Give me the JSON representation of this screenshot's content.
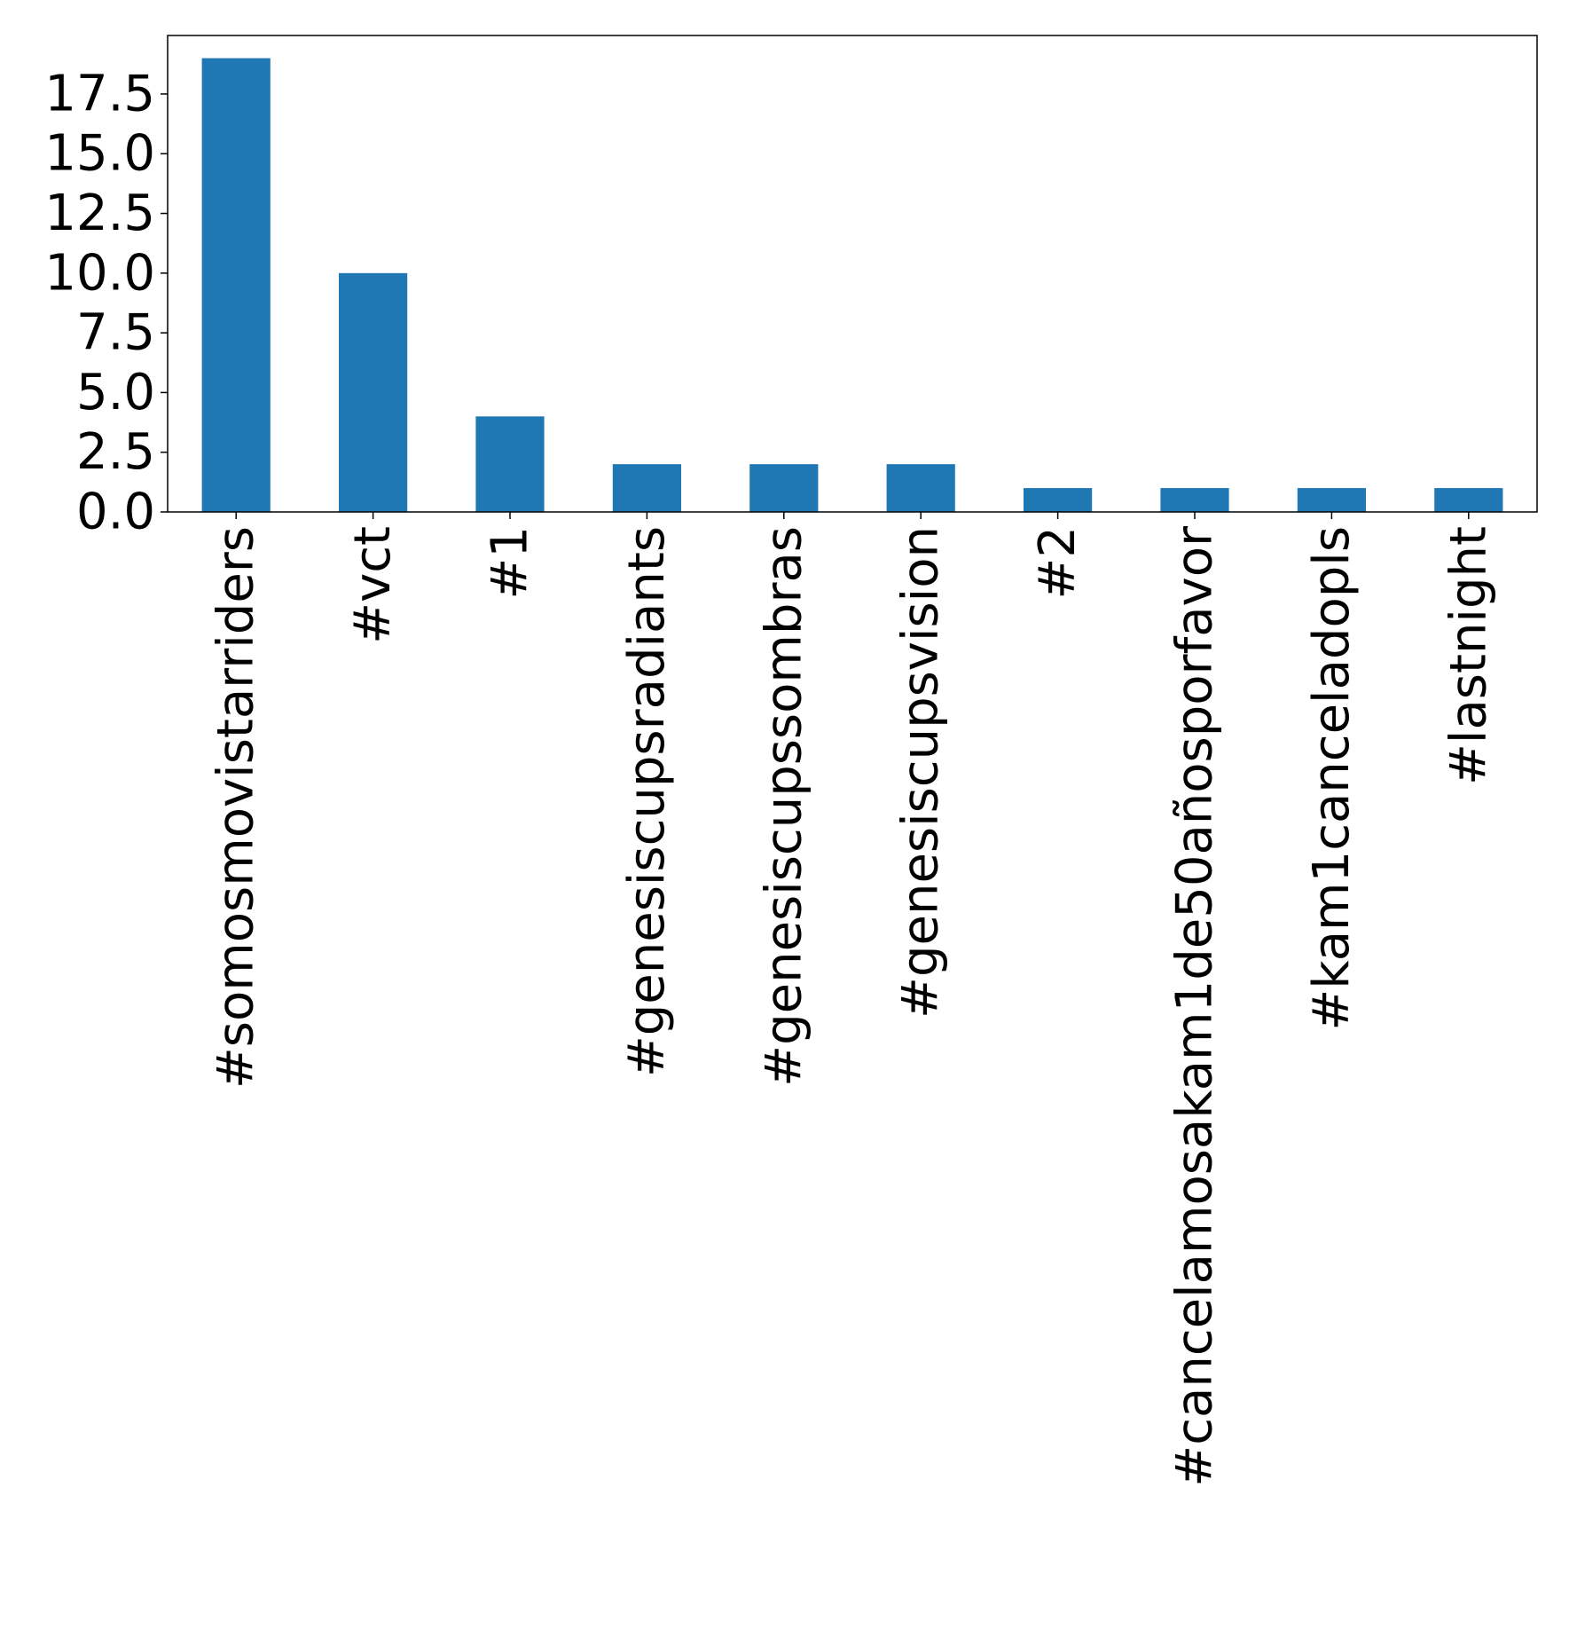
{
  "chart_data": {
    "type": "bar",
    "categories": [
      "#somosmovistarriders",
      "#vct",
      "#1",
      "#genesiscupsradiants",
      "#genesiscupssombras",
      "#genesiscupsvision",
      "#2",
      "#cancelamosakam1de50añosporfavor",
      "#kam1canceladopls",
      "#lastnight"
    ],
    "values": [
      19,
      10,
      4,
      2,
      2,
      2,
      1,
      1,
      1,
      1
    ],
    "ylim": [
      0,
      19.95
    ],
    "yticks": [
      "0.0",
      "2.5",
      "5.0",
      "7.5",
      "10.0",
      "12.5",
      "15.0",
      "17.5"
    ],
    "title": "",
    "xlabel": "",
    "ylabel": "",
    "grid": false,
    "legend": "none",
    "colors": {
      "bar": "#1f77b4",
      "axes": "#000000"
    }
  }
}
